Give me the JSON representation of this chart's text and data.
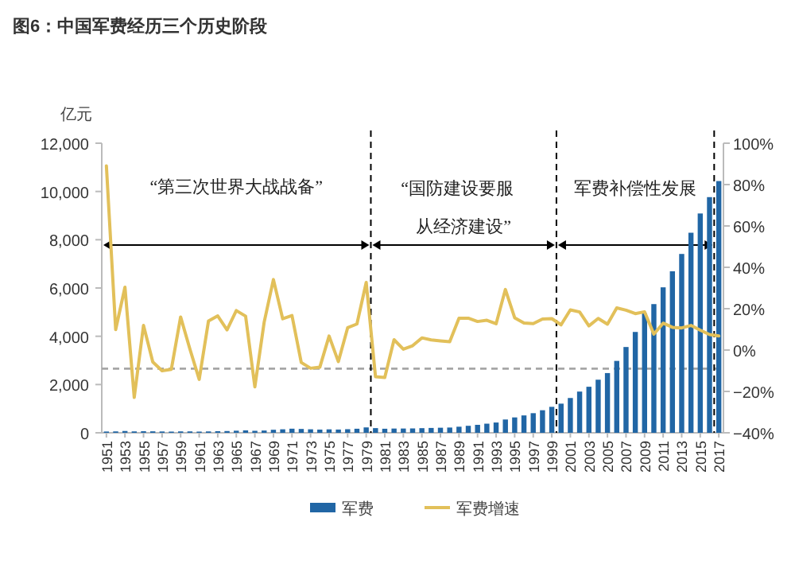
{
  "chart_data": {
    "type": "bar",
    "title": "图6：中国军费经历三个历史阶段",
    "ylabel": "亿元",
    "x": [
      1951,
      1952,
      1953,
      1954,
      1955,
      1956,
      1957,
      1958,
      1959,
      1960,
      1961,
      1962,
      1963,
      1964,
      1965,
      1966,
      1967,
      1968,
      1969,
      1970,
      1971,
      1972,
      1973,
      1974,
      1975,
      1976,
      1977,
      1978,
      1979,
      1980,
      1981,
      1982,
      1983,
      1984,
      1985,
      1986,
      1987,
      1988,
      1989,
      1990,
      1991,
      1992,
      1993,
      1994,
      1995,
      1996,
      1997,
      1998,
      1999,
      2000,
      2001,
      2002,
      2003,
      2004,
      2005,
      2006,
      2007,
      2008,
      2009,
      2010,
      2011,
      2012,
      2013,
      2014,
      2015,
      2016,
      2017
    ],
    "xlim": [
      1950.5,
      2017.5
    ],
    "xticks": [
      1951,
      1953,
      1955,
      1957,
      1959,
      1961,
      1963,
      1965,
      1967,
      1969,
      1971,
      1973,
      1975,
      1977,
      1979,
      1981,
      1983,
      1985,
      1987,
      1989,
      1991,
      1993,
      1995,
      1997,
      1999,
      2001,
      2003,
      2005,
      2007,
      2009,
      2011,
      2013,
      2015,
      2017
    ],
    "ylim": [
      0,
      12000
    ],
    "yticks": [
      {
        "value": 0,
        "label": "0"
      },
      {
        "value": 2000,
        "label": "2,000"
      },
      {
        "value": 4000,
        "label": "4,000"
      },
      {
        "value": 6000,
        "label": "6,000"
      },
      {
        "value": 8000,
        "label": "8,000"
      },
      {
        "value": 10000,
        "label": "10,000"
      },
      {
        "value": 12000,
        "label": "12,000"
      }
    ],
    "y2lim": [
      -40,
      100
    ],
    "y2ticks": [
      {
        "value": -40,
        "label": "−40%"
      },
      {
        "value": -20,
        "label": "−20%"
      },
      {
        "value": 0,
        "label": "0%"
      },
      {
        "value": 20,
        "label": "20%"
      },
      {
        "value": 40,
        "label": "40%"
      },
      {
        "value": 60,
        "label": "60%"
      },
      {
        "value": 80,
        "label": "80%"
      },
      {
        "value": 100,
        "label": "100%"
      }
    ],
    "series": [
      {
        "name": "军费",
        "color": "#2166a5",
        "values": [
          53,
          58,
          75,
          58,
          65,
          61,
          55,
          50,
          58,
          58,
          50,
          57,
          66,
          73,
          87,
          101,
          83,
          94,
          126,
          145,
          170,
          159,
          145,
          133,
          143,
          135,
          149,
          168,
          223,
          194,
          168,
          176,
          177,
          181,
          192,
          201,
          210,
          218,
          252,
          290,
          330,
          378,
          426,
          551,
          637,
          720,
          813,
          935,
          1076,
          1208,
          1442,
          1708,
          1908,
          2200,
          2475,
          2979,
          3555,
          4179,
          4951,
          5333,
          6028,
          6692,
          7411,
          8290,
          9088,
          9766,
          10432
        ]
      },
      {
        "name": "军费增速",
        "type": "line",
        "axis": "y2",
        "color": "#e2c05a",
        "values": [
          89,
          9.9,
          30.4,
          -22.9,
          11.9,
          -5.8,
          -10,
          -9.3,
          16,
          0.5,
          -14.2,
          14,
          16.5,
          9.8,
          19.1,
          16.4,
          -17.8,
          13.4,
          34.1,
          15.1,
          16.7,
          -6,
          -8.8,
          -8.3,
          6.8,
          -5.6,
          10.8,
          12.6,
          32.7,
          -12.9,
          -13.3,
          5,
          0.4,
          2.1,
          5.9,
          4.9,
          4.4,
          4,
          15.4,
          15.4,
          13.8,
          14.4,
          12.7,
          29.3,
          15.6,
          13.1,
          12.8,
          15,
          15.2,
          12.2,
          19.4,
          18.4,
          11.7,
          15.3,
          12.5,
          20.4,
          19.3,
          17.6,
          18.5,
          7.7,
          13,
          11,
          10.7,
          11.9,
          9.6,
          7.5,
          6.8
        ]
      }
    ],
    "ref_lines": [
      {
        "axis": "y2",
        "value": -9,
        "color": "#a6a6a6",
        "line_style": "dashed"
      },
      {
        "axis": "x",
        "value": 1979.5,
        "color": "#000000",
        "line_style": "dashed"
      },
      {
        "axis": "x",
        "value": 1999.5,
        "color": "#000000",
        "line_style": "dashed"
      },
      {
        "axis": "x",
        "value": 2016.5,
        "color": "#000000",
        "line_style": "dashed"
      }
    ],
    "annotations": [
      "“第三次世界大战战备”",
      "“国防建设要服",
      "从经济建设”",
      "军费补偿性发展"
    ],
    "legend": "bottom",
    "grid": false
  }
}
